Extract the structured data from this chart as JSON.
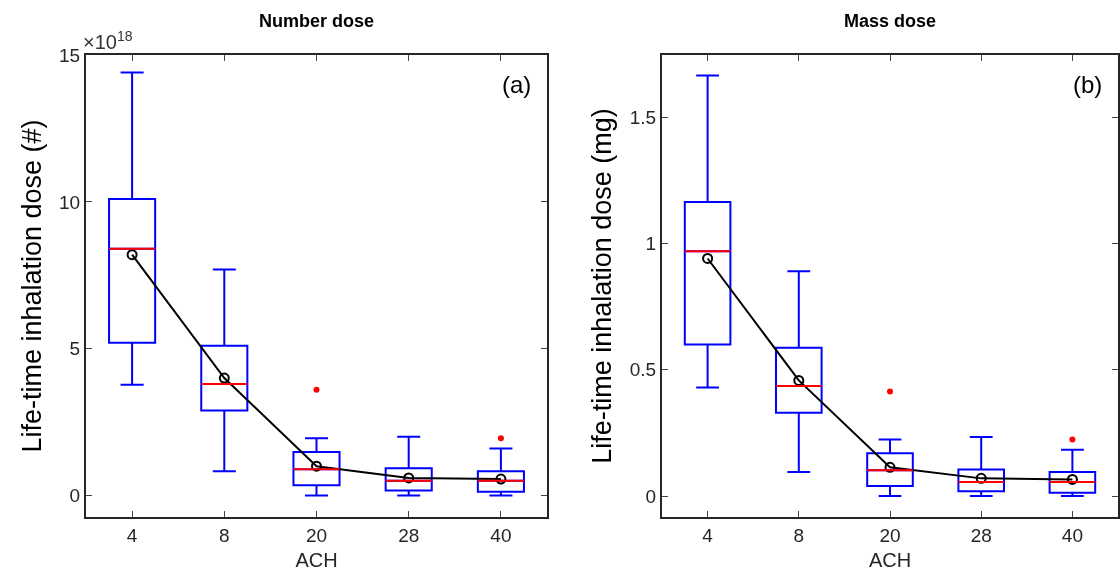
{
  "chart_data": [
    {
      "type": "box",
      "title": "Number dose",
      "xlabel": "ACH",
      "ylabel": "Life-time inhalation dose (#)",
      "categories": [
        "4",
        "8",
        "20",
        "28",
        "40"
      ],
      "annotations": [
        "×10$^{18}$",
        "(a)"
      ],
      "ylim": [
        -0.73,
        15
      ],
      "yticks": [
        0,
        5,
        10,
        15
      ],
      "grid": false,
      "legend": false,
      "series": [
        {
          "type": "box",
          "color": "#0000ff",
          "boxes": [
            {
              "low": 3.77,
              "q1": 5.2,
              "median": 8.4,
              "q3": 10.1,
              "high": 14.4
            },
            {
              "low": 0.83,
              "q1": 2.9,
              "median": 3.8,
              "q3": 5.1,
              "high": 7.7
            },
            {
              "low": 0,
              "q1": 0.35,
              "median": 0.9,
              "q3": 1.48,
              "high": 1.95,
              "outliers": [
                3.6
              ]
            },
            {
              "low": 0,
              "q1": 0.17,
              "median": 0.5,
              "q3": 0.93,
              "high": 2.0
            },
            {
              "low": 0,
              "q1": 0.13,
              "median": 0.5,
              "q3": 0.83,
              "high": 1.6,
              "outliers": [
                1.95
              ]
            }
          ]
        },
        {
          "type": "line",
          "color": "#000000",
          "marker": "circle",
          "values": [
            8.2,
            4.0,
            1.0,
            0.6,
            0.56
          ]
        }
      ]
    },
    {
      "type": "box",
      "title": "Mass dose",
      "xlabel": "ACH",
      "ylabel": "Life-time inhalation dose (mg)",
      "categories": [
        "4",
        "8",
        "20",
        "28",
        "40"
      ],
      "annotations": [
        "(b)"
      ],
      "ylim": [
        -0.083,
        1.747
      ],
      "yticks": [
        0,
        0.5,
        1,
        1.5
      ],
      "grid": false,
      "legend": false,
      "series": [
        {
          "type": "box",
          "color": "#0000ff",
          "boxes": [
            {
              "low": 0.43,
              "q1": 0.6,
              "median": 0.97,
              "q3": 1.165,
              "high": 1.666
            },
            {
              "low": 0.095,
              "q1": 0.33,
              "median": 0.436,
              "q3": 0.587,
              "high": 0.89
            },
            {
              "low": 0,
              "q1": 0.04,
              "median": 0.102,
              "q3": 0.17,
              "high": 0.224,
              "outliers": [
                0.414
              ]
            },
            {
              "low": 0,
              "q1": 0.019,
              "median": 0.056,
              "q3": 0.105,
              "high": 0.234
            },
            {
              "low": 0,
              "q1": 0.013,
              "median": 0.056,
              "q3": 0.095,
              "high": 0.183,
              "outliers": [
                0.224
              ]
            }
          ]
        },
        {
          "type": "line",
          "color": "#000000",
          "marker": "circle",
          "values": [
            0.941,
            0.458,
            0.114,
            0.07,
            0.066
          ]
        }
      ]
    }
  ]
}
